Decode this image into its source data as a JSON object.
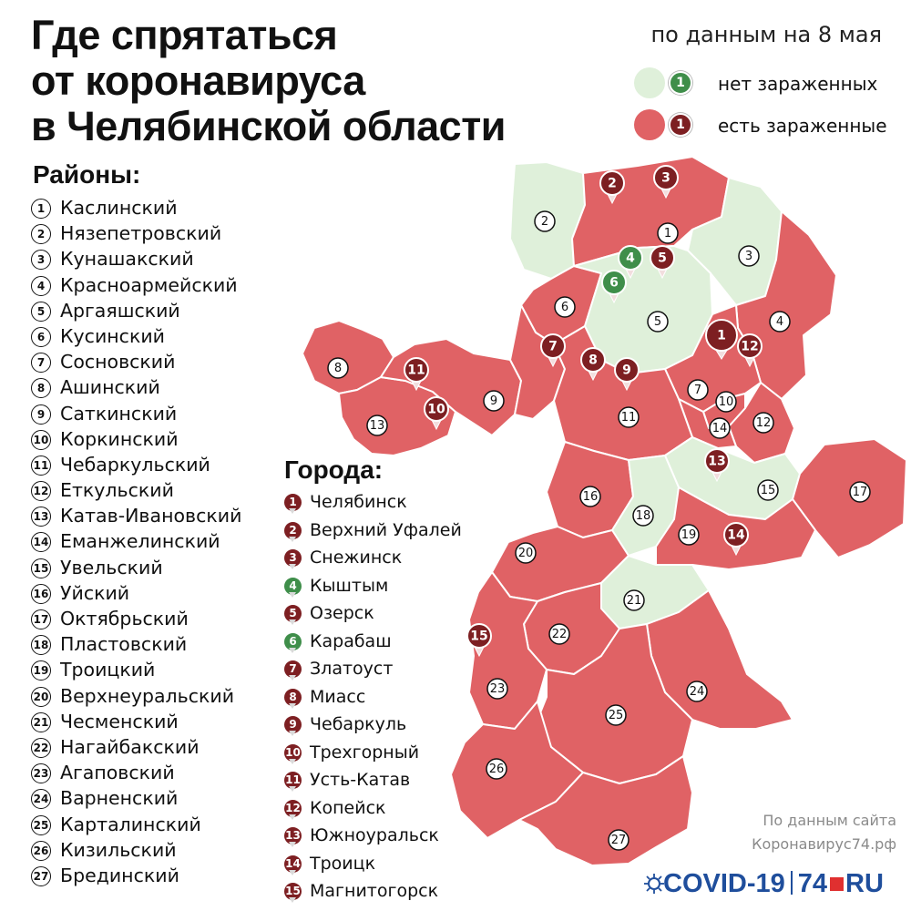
{
  "title": [
    "Где спрятаться",
    "от коронавируса",
    "в Челябинской области"
  ],
  "date": "по данным на 8 мая",
  "legend": [
    {
      "text": "нет зараженных",
      "pin": "1",
      "color": "#dff0da",
      "pin_color": "#3f8e4a"
    },
    {
      "text": "есть зараженные",
      "pin": "1",
      "color": "#e06265",
      "pin_color": "#7d1f22"
    }
  ],
  "districts_title": "Районы:",
  "districts": [
    {
      "n": "1",
      "name": "Каслинский",
      "infected": true
    },
    {
      "n": "2",
      "name": "Нязепетровский",
      "infected": false
    },
    {
      "n": "3",
      "name": "Кунашакский",
      "infected": false
    },
    {
      "n": "4",
      "name": "Красноармейский",
      "infected": true
    },
    {
      "n": "5",
      "name": "Аргаяшский",
      "infected": false
    },
    {
      "n": "6",
      "name": "Кусинский",
      "infected": true
    },
    {
      "n": "7",
      "name": "Сосновский",
      "infected": true
    },
    {
      "n": "8",
      "name": "Ашинский",
      "infected": true
    },
    {
      "n": "9",
      "name": "Саткинский",
      "infected": true
    },
    {
      "n": "10",
      "name": "Коркинский",
      "infected": true
    },
    {
      "n": "11",
      "name": "Чебаркульский",
      "infected": true
    },
    {
      "n": "12",
      "name": "Еткульский",
      "infected": true
    },
    {
      "n": "13",
      "name": "Катав-Ивановский",
      "infected": true
    },
    {
      "n": "14",
      "name": "Еманжелинский",
      "infected": true
    },
    {
      "n": "15",
      "name": "Увельский",
      "infected": false
    },
    {
      "n": "16",
      "name": "Уйский",
      "infected": true
    },
    {
      "n": "17",
      "name": "Октябрьский",
      "infected": true
    },
    {
      "n": "18",
      "name": "Пластовский",
      "infected": false
    },
    {
      "n": "19",
      "name": "Троицкий",
      "infected": true
    },
    {
      "n": "20",
      "name": "Верхнеуральский",
      "infected": true
    },
    {
      "n": "21",
      "name": "Чесменский",
      "infected": false
    },
    {
      "n": "22",
      "name": "Нагайбакский",
      "infected": true
    },
    {
      "n": "23",
      "name": "Агаповский",
      "infected": true
    },
    {
      "n": "24",
      "name": "Варненский",
      "infected": true
    },
    {
      "n": "25",
      "name": "Карталинский",
      "infected": true
    },
    {
      "n": "26",
      "name": "Кизильский",
      "infected": true
    },
    {
      "n": "27",
      "name": "Брединский",
      "infected": true
    }
  ],
  "cities_title": "Города:",
  "cities": [
    {
      "n": "1",
      "name": "Челябинск",
      "infected": true
    },
    {
      "n": "2",
      "name": "Верхний Уфалей",
      "infected": true
    },
    {
      "n": "3",
      "name": "Снежинск",
      "infected": true
    },
    {
      "n": "4",
      "name": "Кыштым",
      "infected": false
    },
    {
      "n": "5",
      "name": "Озерск",
      "infected": true
    },
    {
      "n": "6",
      "name": "Карабаш",
      "infected": false
    },
    {
      "n": "7",
      "name": "Златоуст",
      "infected": true
    },
    {
      "n": "8",
      "name": "Миасс",
      "infected": true
    },
    {
      "n": "9",
      "name": "Чебаркуль",
      "infected": true
    },
    {
      "n": "10",
      "name": "Трехгорный",
      "infected": true
    },
    {
      "n": "11",
      "name": "Усть-Катав",
      "infected": true
    },
    {
      "n": "12",
      "name": "Копейск",
      "infected": true
    },
    {
      "n": "13",
      "name": "Южноуральск",
      "infected": true
    },
    {
      "n": "14",
      "name": "Троицк",
      "infected": true
    },
    {
      "n": "15",
      "name": "Магнитогорск",
      "infected": true
    }
  ],
  "source": [
    "По данным сайта",
    "Коронавирус74.рф"
  ],
  "logo": {
    "part1": "COVID-19",
    "part2": "74",
    "part3": "RU"
  },
  "colors": {
    "infected": "#e06265",
    "clean": "#dff0da",
    "pin_infected": "#7d1f22",
    "pin_clean": "#3f8e4a",
    "border": "#ffffff"
  }
}
